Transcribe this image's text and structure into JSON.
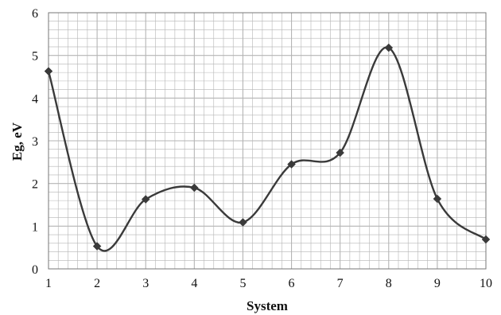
{
  "chart_data": {
    "type": "line",
    "title": "",
    "xlabel": "System",
    "ylabel": "Eg, eV",
    "xlim": [
      1,
      10
    ],
    "ylim": [
      0,
      6
    ],
    "x_ticks": [
      "1",
      "2",
      "3",
      "4",
      "5",
      "6",
      "7",
      "8",
      "9",
      "10"
    ],
    "y_ticks": [
      "0",
      "1",
      "2",
      "3",
      "4",
      "5",
      "6"
    ],
    "grid": true,
    "minor_grid": true,
    "smooth": true,
    "marker": "diamond",
    "line_color": "#3a3a3a",
    "grid_color": "#b5b5b5",
    "series": [
      {
        "x": [
          1,
          2,
          3,
          4,
          5,
          6,
          7,
          8,
          9,
          10
        ],
        "values": [
          4.63,
          0.53,
          1.63,
          1.9,
          1.09,
          2.45,
          2.72,
          5.18,
          1.64,
          0.69
        ]
      }
    ]
  }
}
